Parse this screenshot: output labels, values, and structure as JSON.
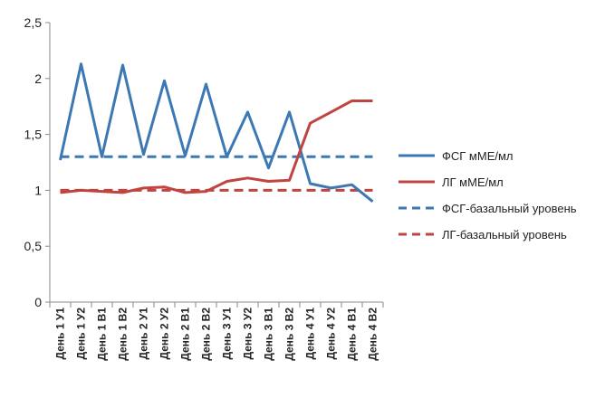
{
  "chart_data": {
    "type": "line",
    "categories": [
      "День 1 У1",
      "День 1 У2",
      "День 1 В1",
      "День 1 В2",
      "День 2 У1",
      "День 2 У2",
      "День 2 В1",
      "День 2 В2",
      "День 3 У1",
      "День 3 У2",
      "День 3 В1",
      "День 3 В2",
      "День 4 У1",
      "День 4 У2",
      "День 4 В1",
      "День 4 В2"
    ],
    "series": [
      {
        "name": "ФСГ мМЕ/мл",
        "color": "#3c78b4",
        "style": "solid",
        "values": [
          1.27,
          2.13,
          1.3,
          2.12,
          1.32,
          1.98,
          1.31,
          1.95,
          1.3,
          1.7,
          1.2,
          1.7,
          1.06,
          1.02,
          1.05,
          0.9
        ]
      },
      {
        "name": "ЛГ мМЕ/мл",
        "color": "#c04540",
        "style": "solid",
        "values": [
          0.98,
          1.0,
          0.99,
          0.98,
          1.02,
          1.03,
          0.98,
          0.99,
          1.08,
          1.11,
          1.08,
          1.09,
          1.6,
          1.7,
          1.8,
          1.8
        ]
      },
      {
        "name": "ФСГ-базальный уровень",
        "color": "#3c78b4",
        "style": "dashed",
        "values": [
          1.3,
          1.3,
          1.3,
          1.3,
          1.3,
          1.3,
          1.3,
          1.3,
          1.3,
          1.3,
          1.3,
          1.3,
          1.3,
          1.3,
          1.3,
          1.3
        ]
      },
      {
        "name": "ЛГ-базальный уровень",
        "color": "#c04540",
        "style": "dashed",
        "values": [
          1.0,
          1.0,
          1.0,
          1.0,
          1.0,
          1.0,
          1.0,
          1.0,
          1.0,
          1.0,
          1.0,
          1.0,
          1.0,
          1.0,
          1.0,
          1.0
        ]
      }
    ],
    "y_ticks": [
      "0",
      "0,5",
      "1",
      "1,5",
      "2",
      "2,5"
    ],
    "ylim": [
      0,
      2.5
    ],
    "grid": false,
    "legend_position": "right",
    "title": "",
    "xlabel": "",
    "ylabel": ""
  }
}
